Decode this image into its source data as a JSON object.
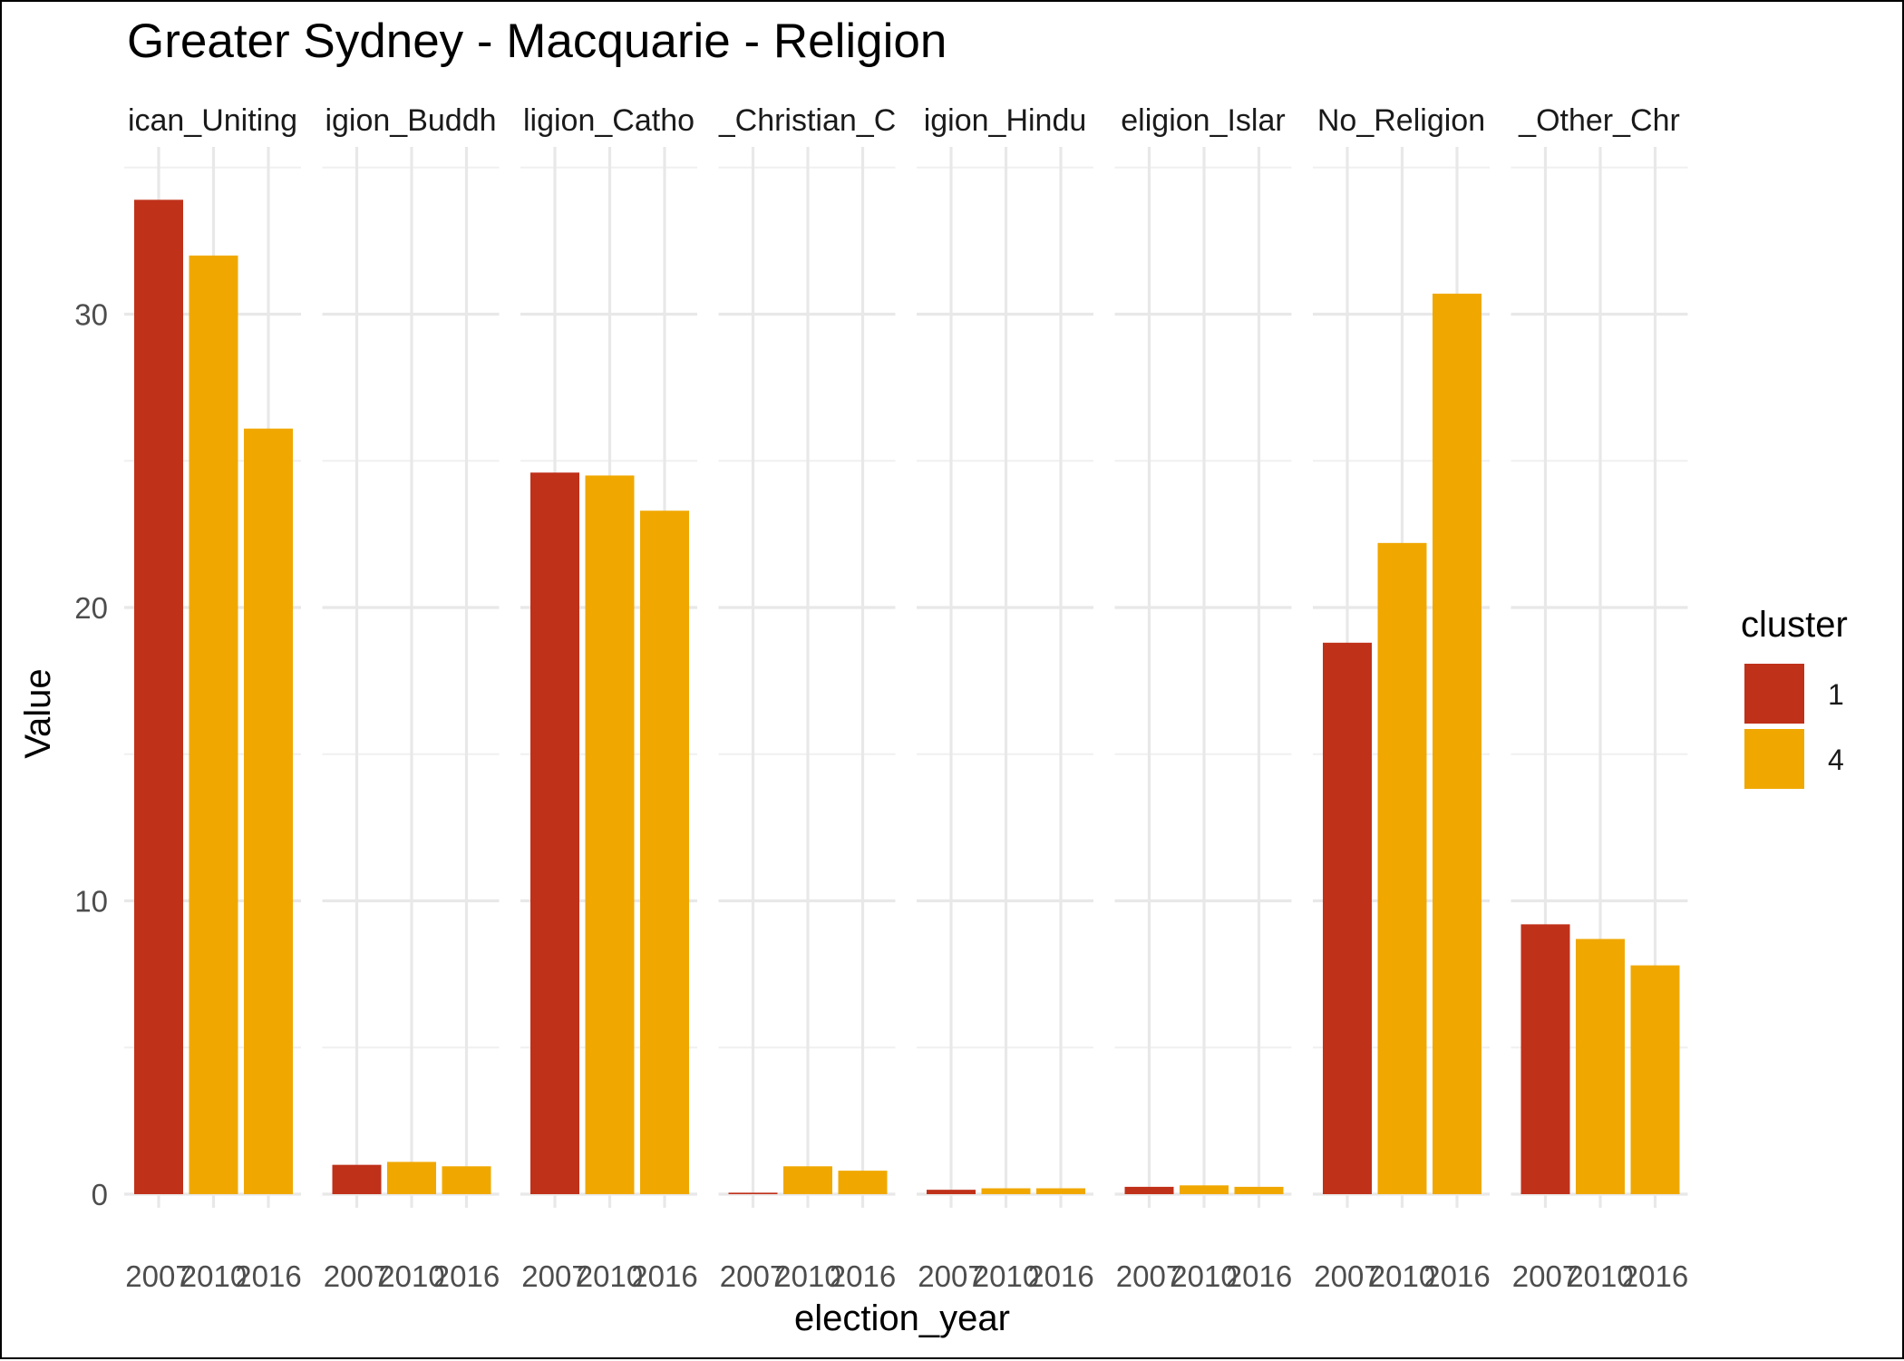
{
  "chart_data": {
    "type": "bar",
    "title": "Greater Sydney - Macquarie - Religion",
    "xlabel": "election_year",
    "ylabel": "Value",
    "ylim": [
      0,
      35
    ],
    "y_ticks": [
      0,
      10,
      20,
      30
    ],
    "x": [
      "2007",
      "2010",
      "2016"
    ],
    "grid": true,
    "legend": {
      "title": "cluster",
      "position": "right",
      "entries": [
        {
          "label": "1",
          "color": "#C0311A"
        },
        {
          "label": "4",
          "color": "#F0A800"
        }
      ]
    },
    "facets": [
      {
        "strip_label": "ican_Uniting",
        "bars": [
          {
            "x": "2007",
            "value": 33.9,
            "cluster": "1"
          },
          {
            "x": "2010",
            "value": 32.0,
            "cluster": "4"
          },
          {
            "x": "2016",
            "value": 26.1,
            "cluster": "4"
          }
        ]
      },
      {
        "strip_label": "igion_Buddh",
        "bars": [
          {
            "x": "2007",
            "value": 1.0,
            "cluster": "1"
          },
          {
            "x": "2010",
            "value": 1.1,
            "cluster": "4"
          },
          {
            "x": "2016",
            "value": 0.95,
            "cluster": "4"
          }
        ]
      },
      {
        "strip_label": "ligion_Catho",
        "bars": [
          {
            "x": "2007",
            "value": 24.6,
            "cluster": "1"
          },
          {
            "x": "2010",
            "value": 24.5,
            "cluster": "4"
          },
          {
            "x": "2016",
            "value": 23.3,
            "cluster": "4"
          }
        ]
      },
      {
        "strip_label": "_Christian_C",
        "bars": [
          {
            "x": "2007",
            "value": 0.05,
            "cluster": "1"
          },
          {
            "x": "2010",
            "value": 0.95,
            "cluster": "4"
          },
          {
            "x": "2016",
            "value": 0.8,
            "cluster": "4"
          }
        ]
      },
      {
        "strip_label": "igion_Hindu",
        "bars": [
          {
            "x": "2007",
            "value": 0.15,
            "cluster": "1"
          },
          {
            "x": "2010",
            "value": 0.2,
            "cluster": "4"
          },
          {
            "x": "2016",
            "value": 0.2,
            "cluster": "4"
          }
        ]
      },
      {
        "strip_label": "eligion_Islar",
        "bars": [
          {
            "x": "2007",
            "value": 0.25,
            "cluster": "1"
          },
          {
            "x": "2010",
            "value": 0.3,
            "cluster": "4"
          },
          {
            "x": "2016",
            "value": 0.25,
            "cluster": "4"
          }
        ]
      },
      {
        "strip_label": "No_Religion",
        "bars": [
          {
            "x": "2007",
            "value": 18.8,
            "cluster": "1"
          },
          {
            "x": "2010",
            "value": 22.2,
            "cluster": "4"
          },
          {
            "x": "2016",
            "value": 30.7,
            "cluster": "4"
          }
        ]
      },
      {
        "strip_label": "_Other_Chr",
        "bars": [
          {
            "x": "2007",
            "value": 9.2,
            "cluster": "1"
          },
          {
            "x": "2010",
            "value": 8.7,
            "cluster": "4"
          },
          {
            "x": "2016",
            "value": 7.8,
            "cluster": "4"
          }
        ]
      }
    ]
  }
}
